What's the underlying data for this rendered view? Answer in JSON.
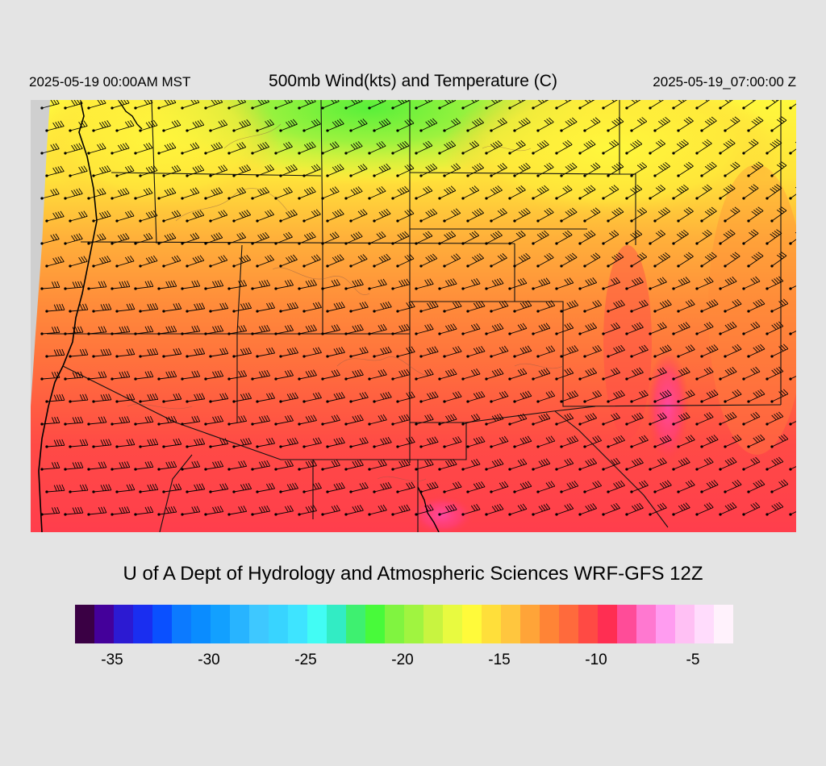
{
  "header": {
    "local_time": "2025-05-19 00:00AM MST",
    "title": "500mb Wind(kts) and Temperature (C)",
    "valid_time": "2025-05-19_07:00:00 Z"
  },
  "credit": "U of A Dept of Hydrology and Atmospheric Sciences WRF-GFS 12Z",
  "colorbar": {
    "colors": [
      "#3a0044",
      "#44009a",
      "#2c1ad2",
      "#1a2ef0",
      "#0a50ff",
      "#0c7aff",
      "#0a8cff",
      "#12a0ff",
      "#28b4ff",
      "#3ec8ff",
      "#38d4ff",
      "#3ee4ff",
      "#42fcf4",
      "#32ecc4",
      "#3ef070",
      "#48fa3a",
      "#80f440",
      "#a0f440",
      "#c8f440",
      "#e8fa40",
      "#fffa3a",
      "#ffdf3a",
      "#ffc63e",
      "#ffa438",
      "#ff8436",
      "#ff6a3c",
      "#ff4a44",
      "#ff2e52",
      "#ff4c98",
      "#ff78d0",
      "#ff9cf0",
      "#ffc0f4",
      "#ffdcfc",
      "#fff2fc"
    ],
    "tick_labels": [
      "-35",
      "-30",
      "-25",
      "-20",
      "-15",
      "-10",
      "-5"
    ],
    "tick_values": [
      -35,
      -30,
      -25,
      -20,
      -15,
      -10,
      -5
    ],
    "min": -37,
    "max": -3,
    "step": 1
  },
  "map": {
    "field": "temperature_500mb",
    "wind_barbs": "westerly flow",
    "colors": {
      "warmest": "#ff3e84",
      "warm": "#ff4848",
      "mid": "#ffa03a",
      "cool": "#fff83c",
      "coolest": "#6cf43c",
      "offmap": "#d0d0d0"
    }
  }
}
